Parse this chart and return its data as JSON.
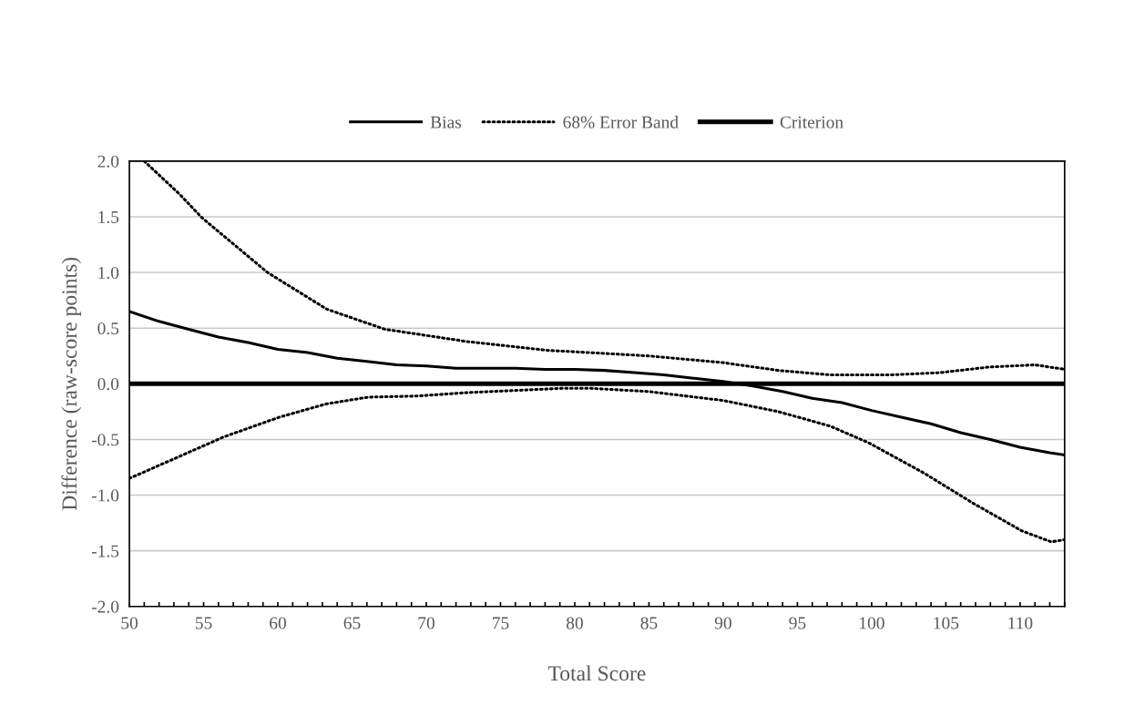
{
  "chart_data": {
    "type": "line",
    "xlabel": "Total Score",
    "ylabel": "Difference (raw-score points)",
    "xlim": [
      50,
      113
    ],
    "ylim": [
      -2.0,
      2.0
    ],
    "xticks": [
      {
        "value": 50,
        "label": "50"
      },
      {
        "value": 51,
        "label": null
      },
      {
        "value": 52,
        "label": null
      },
      {
        "value": 53,
        "label": null
      },
      {
        "value": 54,
        "label": null
      },
      {
        "value": 55,
        "label": "55"
      },
      {
        "value": 56,
        "label": null
      },
      {
        "value": 57,
        "label": null
      },
      {
        "value": 58,
        "label": null
      },
      {
        "value": 59,
        "label": null
      },
      {
        "value": 60,
        "label": "60"
      },
      {
        "value": 61,
        "label": null
      },
      {
        "value": 62,
        "label": null
      },
      {
        "value": 63,
        "label": null
      },
      {
        "value": 64,
        "label": null
      },
      {
        "value": 65,
        "label": "65"
      },
      {
        "value": 66,
        "label": null
      },
      {
        "value": 67,
        "label": null
      },
      {
        "value": 68,
        "label": null
      },
      {
        "value": 69,
        "label": null
      },
      {
        "value": 70,
        "label": "70"
      },
      {
        "value": 71,
        "label": null
      },
      {
        "value": 72,
        "label": null
      },
      {
        "value": 73,
        "label": null
      },
      {
        "value": 74,
        "label": null
      },
      {
        "value": 75,
        "label": "75"
      },
      {
        "value": 76,
        "label": null
      },
      {
        "value": 77,
        "label": null
      },
      {
        "value": 78,
        "label": null
      },
      {
        "value": 79,
        "label": null
      },
      {
        "value": 80,
        "label": "80"
      },
      {
        "value": 81,
        "label": null
      },
      {
        "value": 82,
        "label": null
      },
      {
        "value": 83,
        "label": null
      },
      {
        "value": 84,
        "label": null
      },
      {
        "value": 85,
        "label": "85"
      },
      {
        "value": 86,
        "label": null
      },
      {
        "value": 87,
        "label": null
      },
      {
        "value": 88,
        "label": null
      },
      {
        "value": 89,
        "label": null
      },
      {
        "value": 90,
        "label": "90"
      },
      {
        "value": 91,
        "label": null
      },
      {
        "value": 92,
        "label": null
      },
      {
        "value": 93,
        "label": null
      },
      {
        "value": 94,
        "label": null
      },
      {
        "value": 95,
        "label": "95"
      },
      {
        "value": 96,
        "label": null
      },
      {
        "value": 97,
        "label": null
      },
      {
        "value": 98,
        "label": null
      },
      {
        "value": 99,
        "label": null
      },
      {
        "value": 100,
        "label": "100"
      },
      {
        "value": 101,
        "label": null
      },
      {
        "value": 102,
        "label": null
      },
      {
        "value": 103,
        "label": null
      },
      {
        "value": 104,
        "label": null
      },
      {
        "value": 105,
        "label": "105"
      },
      {
        "value": 106,
        "label": null
      },
      {
        "value": 107,
        "label": null
      },
      {
        "value": 108,
        "label": null
      },
      {
        "value": 109,
        "label": null
      },
      {
        "value": 110,
        "label": "110"
      },
      {
        "value": 111,
        "label": null
      },
      {
        "value": 112,
        "label": null
      },
      {
        "value": 113,
        "label": null
      }
    ],
    "yticks": [
      {
        "value": -2.0,
        "label": "-2.0"
      },
      {
        "value": -1.5,
        "label": "-1.5"
      },
      {
        "value": -1.0,
        "label": "-1.0"
      },
      {
        "value": -0.5,
        "label": "-0.5"
      },
      {
        "value": 0.0,
        "label": "0.0"
      },
      {
        "value": 0.5,
        "label": "0.5"
      },
      {
        "value": 1.0,
        "label": "1.0"
      },
      {
        "value": 1.5,
        "label": "1.5"
      },
      {
        "value": 2.0,
        "label": "2.0"
      }
    ],
    "grid": "y",
    "legend": "top",
    "marker": "none",
    "series": [
      {
        "name": "Bias",
        "color": "#000000",
        "line_style": "solid",
        "x": [
          50,
          52,
          54,
          56,
          58,
          60,
          62,
          64,
          66,
          68,
          70,
          72,
          74,
          76,
          78,
          80,
          82,
          84,
          86,
          88,
          90,
          92,
          94,
          96,
          98,
          100,
          102,
          104,
          106,
          108,
          110,
          112,
          113
        ],
        "values": [
          0.65,
          0.56,
          0.49,
          0.42,
          0.37,
          0.31,
          0.28,
          0.23,
          0.2,
          0.17,
          0.16,
          0.14,
          0.14,
          0.14,
          0.13,
          0.13,
          0.12,
          0.1,
          0.08,
          0.05,
          0.02,
          -0.02,
          -0.07,
          -0.13,
          -0.17,
          -0.24,
          -0.3,
          -0.36,
          -0.44,
          -0.5,
          -0.57,
          -0.62,
          -0.64
        ]
      },
      {
        "name": "68% Error Band",
        "color": "#000000",
        "line_style": "dotted",
        "x": [
          51,
          53.4,
          54.9,
          59.3,
          63.3,
          67.2,
          72.7,
          78.2,
          81,
          85,
          90,
          93.7,
          97.2,
          101.3,
          104.6,
          107.9,
          111,
          113
        ],
        "values": [
          2.0,
          1.7,
          1.49,
          1.0,
          0.67,
          0.49,
          0.38,
          0.3,
          0.28,
          0.25,
          0.19,
          0.12,
          0.08,
          0.08,
          0.1,
          0.15,
          0.17,
          0.13
        ]
      },
      {
        "color": "#000000",
        "line_style": "dotted",
        "x": [
          50,
          54.1,
          56.3,
          60.1,
          63.3,
          66.1,
          69.4,
          72.7,
          76,
          79.3,
          81,
          85,
          90,
          93.7,
          97.2,
          99.8,
          103.5,
          106.8,
          110.1,
          112.1,
          113
        ],
        "values": [
          -0.85,
          -0.61,
          -0.48,
          -0.3,
          -0.18,
          -0.12,
          -0.11,
          -0.08,
          -0.06,
          -0.04,
          -0.04,
          -0.07,
          -0.15,
          -0.25,
          -0.38,
          -0.53,
          -0.8,
          -1.07,
          -1.32,
          -1.42,
          -1.4
        ]
      }
    ],
    "ref_lines": [
      {
        "axis": "y",
        "value": 0,
        "label": "Criterion",
        "color": "#000000",
        "line_style": "solid"
      }
    ]
  }
}
